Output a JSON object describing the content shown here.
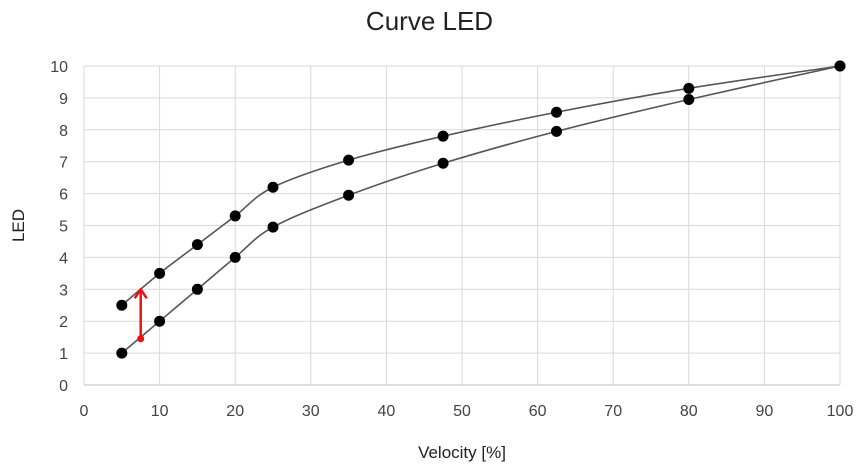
{
  "chart_data": {
    "type": "line",
    "title": "Curve LED",
    "xlabel": "Velocity [%]",
    "ylabel": "LED",
    "xlim": [
      0,
      100
    ],
    "ylim": [
      0,
      10
    ],
    "xticks": [
      0,
      10,
      20,
      30,
      40,
      50,
      60,
      70,
      80,
      90,
      100
    ],
    "yticks": [
      0,
      1,
      2,
      3,
      4,
      5,
      6,
      7,
      8,
      9,
      10
    ],
    "grid": true,
    "legend": "none",
    "series": [
      {
        "color": "#000000",
        "x": [
          5,
          10,
          15,
          20,
          25,
          35,
          47.5,
          62.5,
          80,
          100
        ],
        "y": [
          2.5,
          3.5,
          4.4,
          5.3,
          6.2,
          7.05,
          7.8,
          8.55,
          9.3,
          10
        ]
      },
      {
        "color": "#000000",
        "x": [
          5,
          10,
          15,
          20,
          25,
          35,
          47.5,
          62.5,
          80,
          100
        ],
        "y": [
          1,
          2,
          3,
          4,
          4.95,
          5.95,
          6.95,
          7.95,
          8.95,
          10
        ]
      }
    ],
    "annotations": [
      {
        "type": "arrow",
        "color": "#ee1111",
        "x": 7.5,
        "y_from": 1.45,
        "y_to": 3.0
      }
    ]
  }
}
